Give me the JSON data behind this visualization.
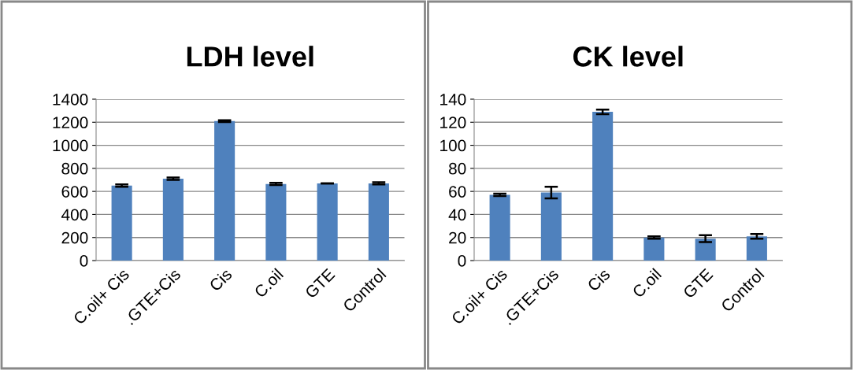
{
  "chart_data": [
    {
      "type": "bar",
      "title": "LDH level",
      "categories": [
        "C.oil+ Cis",
        ".GTE+Cis",
        "Cis",
        "C.oil",
        "GTE",
        "Control"
      ],
      "values": [
        650,
        710,
        1210,
        665,
        670,
        670
      ],
      "errors": [
        10,
        10,
        8,
        10,
        null,
        10
      ],
      "color": "#4f81bd",
      "ylim": [
        0,
        1400
      ],
      "yticks": [
        0,
        200,
        400,
        600,
        800,
        1000,
        1200,
        1400
      ],
      "grid": "y"
    },
    {
      "type": "bar",
      "title": "CK level",
      "categories": [
        "C.oil+ Cis",
        ".GTE+Cis",
        "Cis",
        "C.oil",
        "GTE",
        "Control"
      ],
      "values": [
        57,
        59,
        129,
        20,
        19,
        21
      ],
      "errors": [
        1,
        5,
        2,
        1,
        3,
        2
      ],
      "color": "#4f81bd",
      "ylim": [
        0,
        140
      ],
      "yticks": [
        0,
        20,
        40,
        60,
        80,
        100,
        120,
        140
      ],
      "grid": "y"
    }
  ]
}
